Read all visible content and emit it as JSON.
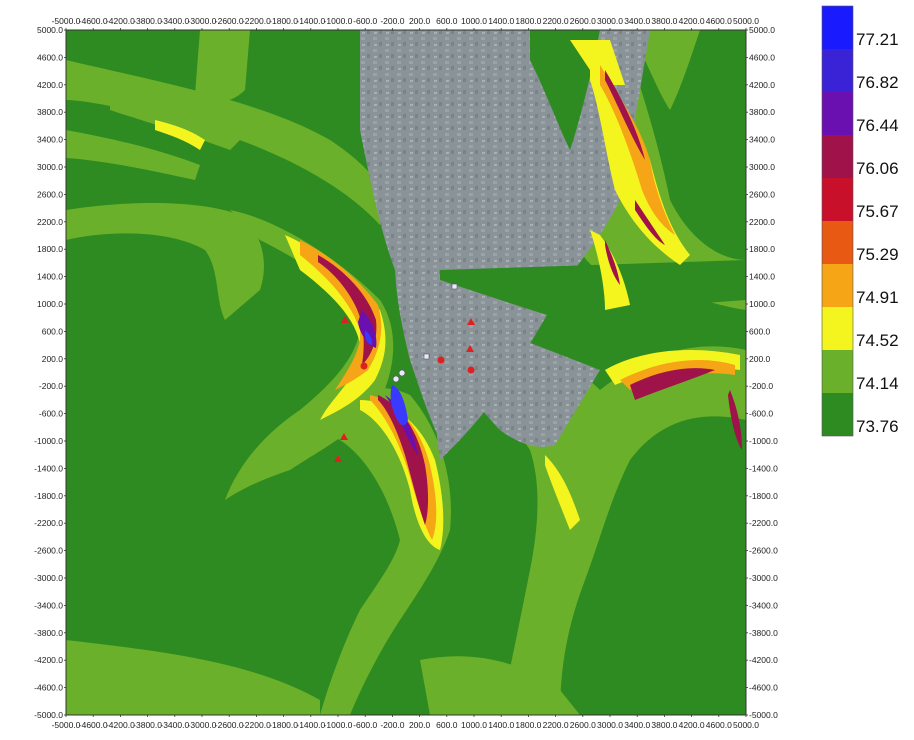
{
  "map": {
    "axis": {
      "min": -5000,
      "max": 5000,
      "y_ticks": [
        "5000.0",
        "4600.0",
        "4200.0",
        "3800.0",
        "3400.0",
        "3000.0",
        "2600.0",
        "2200.0",
        "1800.0",
        "1400.0",
        "1000.0",
        "600.0",
        "200.0",
        "-200.0",
        "-600.0",
        "-1000.0",
        "-1400.0",
        "-1800.0",
        "-2200.0",
        "-2600.0",
        "-3000.0",
        "-3400.0",
        "-3800.0",
        "-4200.0",
        "-4600.0",
        "-5000.0"
      ],
      "x_ticks": [
        "-5000.0",
        "-4600.0",
        "-4200.0",
        "-3800.0",
        "-3400.0",
        "-3000.0",
        "-2600.0",
        "-2200.0",
        "-1800.0",
        "-1400.0",
        "-1000.0",
        "-600.0",
        "-200.0",
        "200.0",
        "600.0",
        "1000.0",
        "1400.0",
        "1800.0",
        "2200.0",
        "2600.0",
        "3000.0",
        "3400.0",
        "3800.0",
        "4200.0",
        "4600.0",
        "5000.0"
      ]
    },
    "legend": {
      "entries": [
        {
          "label": "77.21",
          "color": "#1a1aff"
        },
        {
          "label": "76.82",
          "color": "#3a22d6"
        },
        {
          "label": "76.44",
          "color": "#6a0fb0"
        },
        {
          "label": "76.06",
          "color": "#a0124a"
        },
        {
          "label": "75.67",
          "color": "#c8102a"
        },
        {
          "label": "75.29",
          "color": "#e85a14"
        },
        {
          "label": "74.91",
          "color": "#f5a515"
        },
        {
          "label": "74.52",
          "color": "#f4f51e"
        },
        {
          "label": "74.14",
          "color": "#6bb02a"
        },
        {
          "label": "73.76",
          "color": "#2e8b22"
        }
      ]
    },
    "colors": {
      "background": "#2e8b22",
      "light_green": "#6bb02a",
      "yellow": "#f4f51e",
      "orange": "#f5a515",
      "red": "#c8102a",
      "purple": "#6a0fb0",
      "blue": "#3a3aff",
      "satellite": "#8a9398",
      "receptor_marker": "#e02020"
    }
  }
}
